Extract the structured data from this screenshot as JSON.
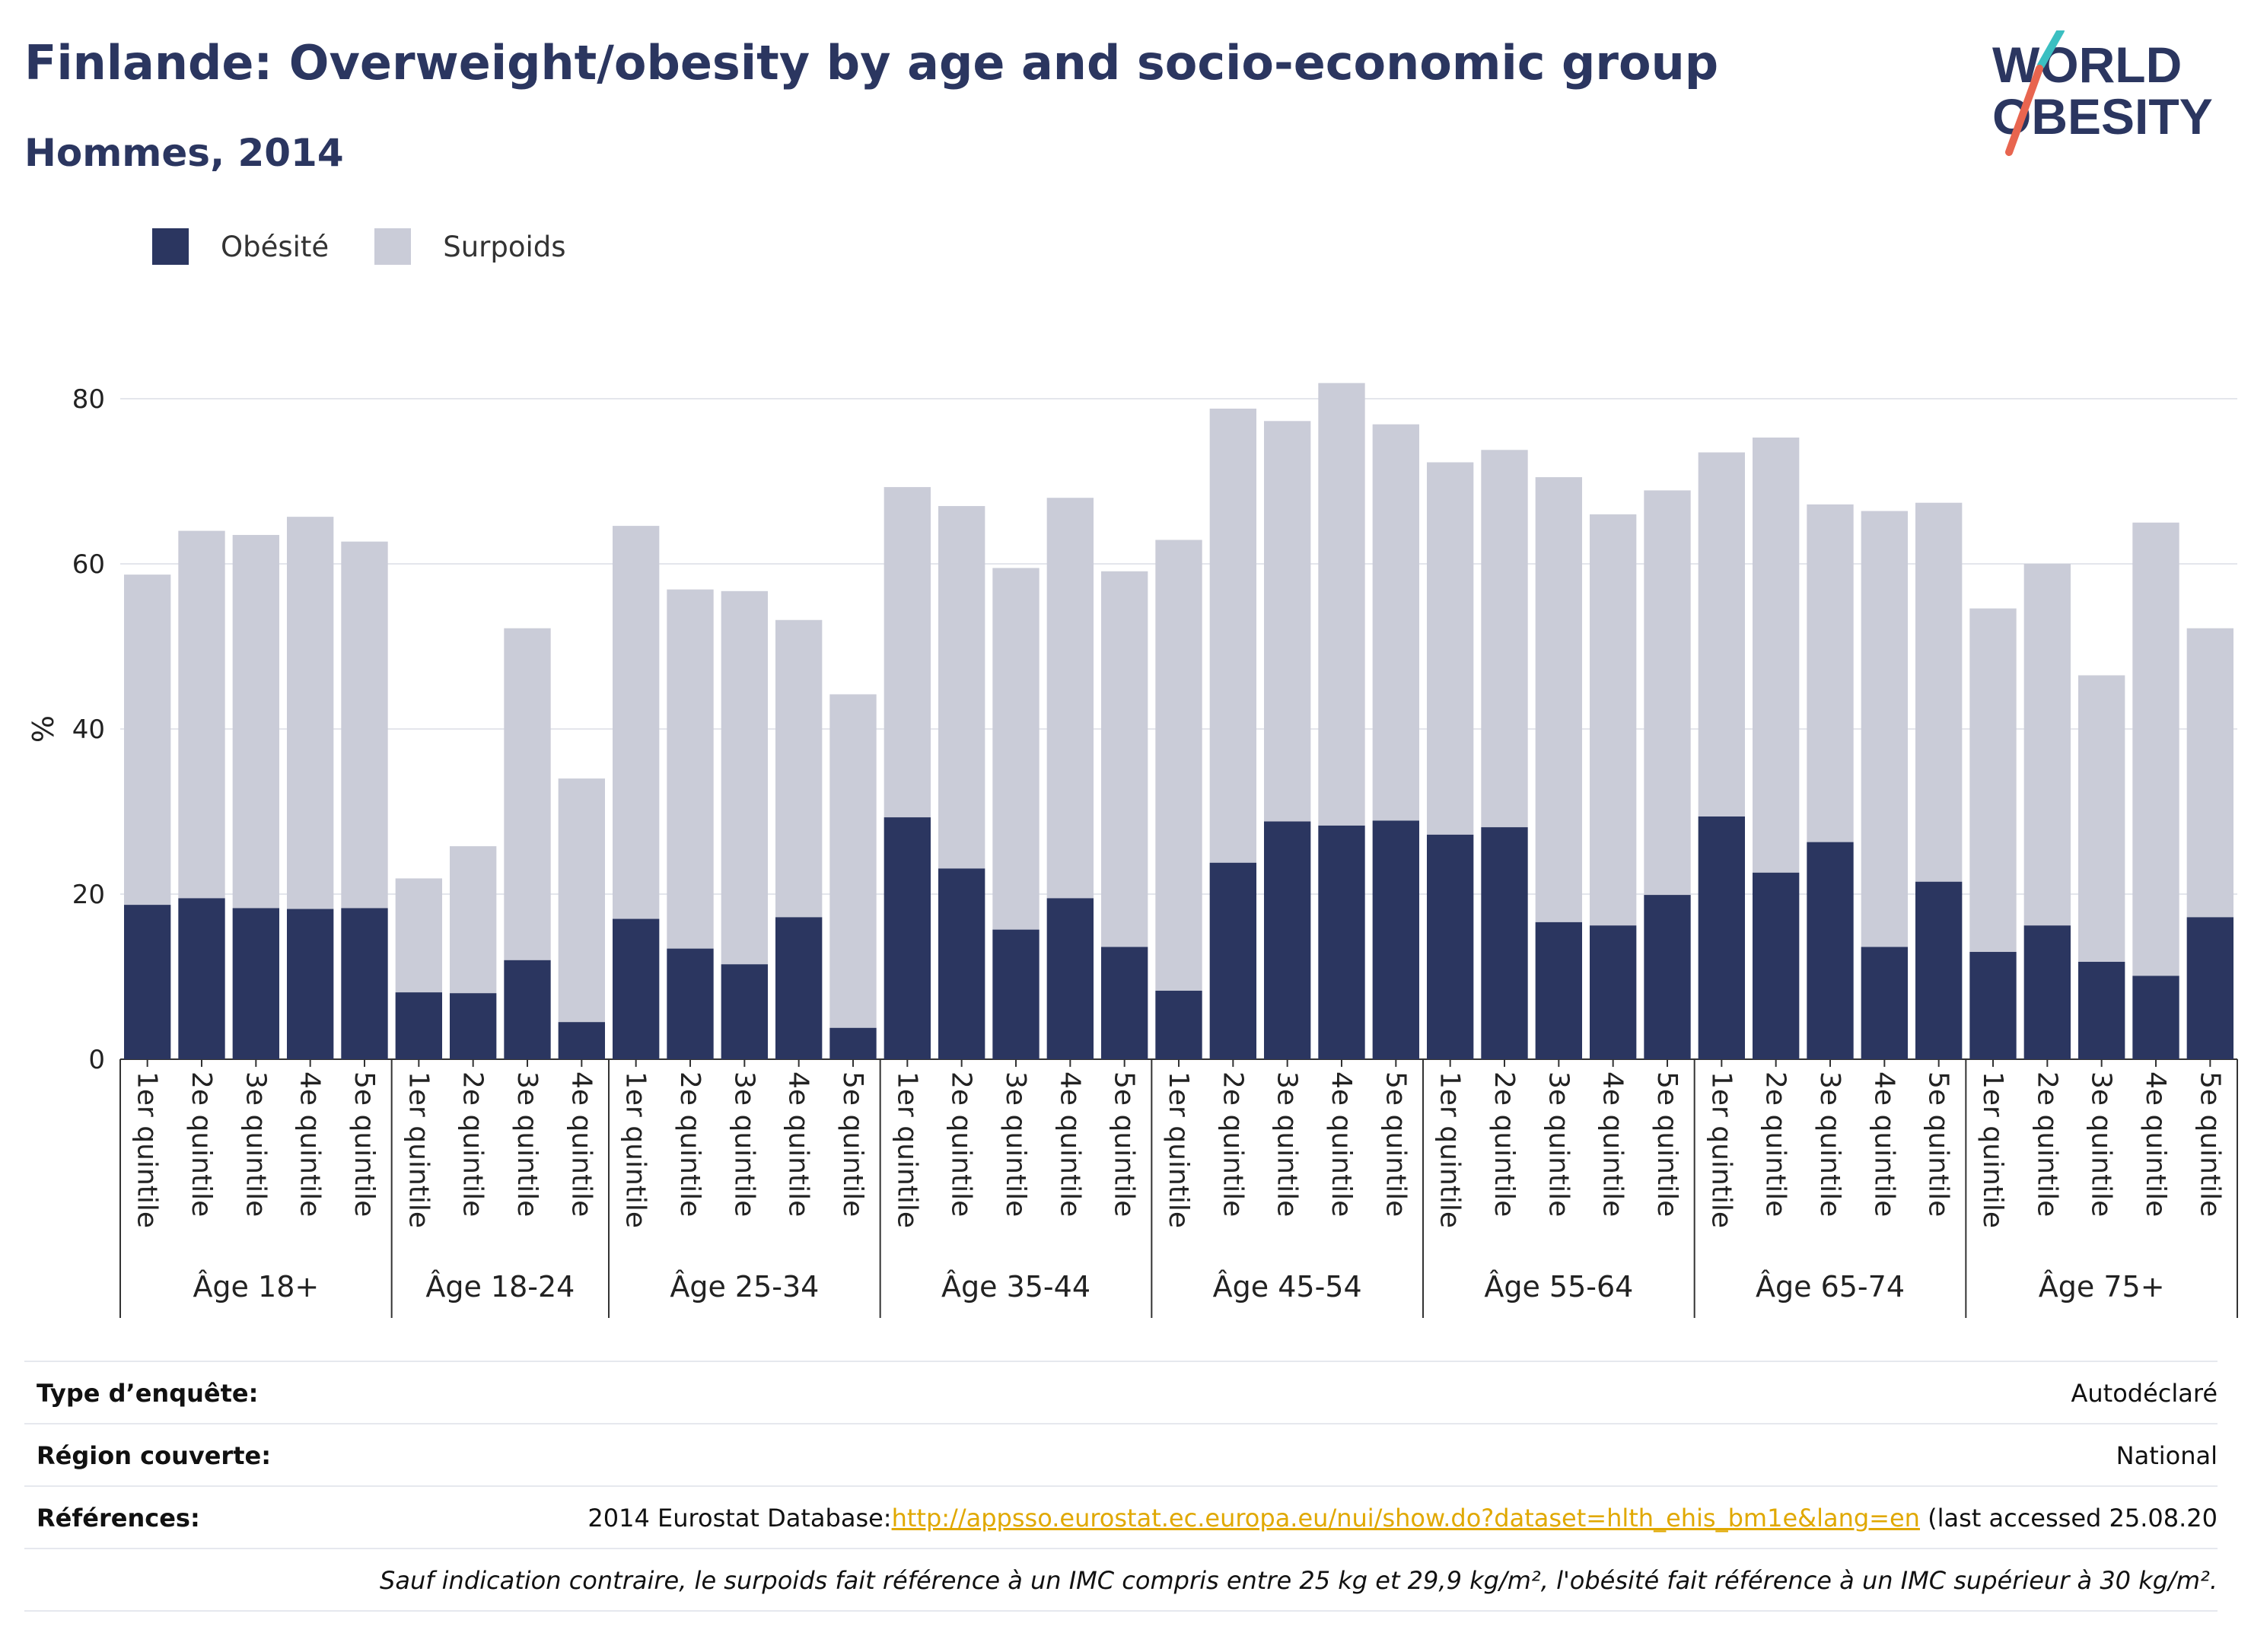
{
  "header": {
    "title": "Finlande: Overweight/obesity by age and socio-economic group",
    "subtitle": "Hommes, 2014"
  },
  "logo": {
    "line1": "WORLD",
    "line2": "OBESITY",
    "accent_colors": [
      "#3bbfc1",
      "#e8654f"
    ],
    "text_color": "#2b3660"
  },
  "legend": [
    {
      "label": "Obésité",
      "color": "#2b3660"
    },
    {
      "label": "Surpoids",
      "color": "#caccd8"
    }
  ],
  "chart_data": {
    "type": "bar",
    "stacked": true,
    "ylabel": "%",
    "ylim": [
      0,
      85
    ],
    "yticks": [
      0,
      20,
      40,
      60,
      80
    ],
    "grid": true,
    "legend_position": "top-left",
    "groups": [
      {
        "label": "Âge 18+",
        "categories": [
          "1er quintile",
          "2e quintile",
          "3e quintile",
          "4e quintile",
          "5e quintile"
        ],
        "obesity": [
          18.7,
          19.5,
          18.3,
          18.2,
          18.3
        ],
        "total": [
          58.7,
          64.0,
          63.5,
          65.7,
          62.7
        ]
      },
      {
        "label": "Âge 18-24",
        "categories": [
          "1er quintile",
          "2e quintile",
          "3e quintile",
          "4e quintile"
        ],
        "obesity": [
          8.1,
          8.0,
          12.0,
          4.5
        ],
        "total": [
          21.9,
          25.8,
          52.2,
          34.0
        ]
      },
      {
        "label": "Âge 25-34",
        "categories": [
          "1er quintile",
          "2e quintile",
          "3e quintile",
          "4e quintile",
          "5e quintile"
        ],
        "obesity": [
          17.0,
          13.4,
          11.5,
          17.2,
          3.8
        ],
        "total": [
          64.6,
          56.9,
          56.7,
          53.2,
          44.2
        ]
      },
      {
        "label": "Âge 35-44",
        "categories": [
          "1er quintile",
          "2e quintile",
          "3e quintile",
          "4e quintile",
          "5e quintile"
        ],
        "obesity": [
          29.3,
          23.1,
          15.7,
          19.5,
          13.6
        ],
        "total": [
          69.3,
          67.0,
          59.5,
          68.0,
          59.1
        ]
      },
      {
        "label": "Âge 45-54",
        "categories": [
          "1er quintile",
          "2e quintile",
          "3e quintile",
          "4e quintile",
          "5e quintile"
        ],
        "obesity": [
          8.3,
          23.8,
          28.8,
          28.3,
          28.9
        ],
        "total": [
          62.9,
          78.8,
          77.3,
          81.9,
          76.9
        ]
      },
      {
        "label": "Âge 55-64",
        "categories": [
          "1er quintile",
          "2e quintile",
          "3e quintile",
          "4e quintile",
          "5e quintile"
        ],
        "obesity": [
          27.2,
          28.1,
          16.6,
          16.2,
          19.9
        ],
        "total": [
          72.3,
          73.8,
          70.5,
          66.0,
          68.9
        ]
      },
      {
        "label": "Âge 65-74",
        "categories": [
          "1er quintile",
          "2e quintile",
          "3e quintile",
          "4e quintile",
          "5e quintile"
        ],
        "obesity": [
          29.4,
          22.6,
          26.3,
          13.6,
          21.5
        ],
        "total": [
          73.5,
          75.3,
          67.2,
          66.4,
          67.4
        ]
      },
      {
        "label": "Âge 75+",
        "categories": [
          "1er quintile",
          "2e quintile",
          "3e quintile",
          "4e quintile",
          "5e quintile"
        ],
        "obesity": [
          13.0,
          16.2,
          11.8,
          10.1,
          17.2
        ],
        "total": [
          54.6,
          60.0,
          46.5,
          65.0,
          52.2
        ]
      }
    ]
  },
  "meta": {
    "survey_label": "Type d’enquête:",
    "survey_value": "Autodéclaré",
    "region_label": "Région couverte:",
    "region_value": "National",
    "refs_label": "Références:",
    "refs_prefix": "2014 Eurostat Database:",
    "refs_link": "http://appsso.eurostat.ec.europa.eu/nui/show.do?dataset=hlth_ehis_bm1e&lang=en",
    "refs_suffix": " (last accessed 25.08.20",
    "note": "Sauf indication contraire, le surpoids fait référence à un IMC compris entre 25 kg et 29,9 kg/m², l'obésité fait référence à un IMC supérieur à 30 kg/m²."
  }
}
